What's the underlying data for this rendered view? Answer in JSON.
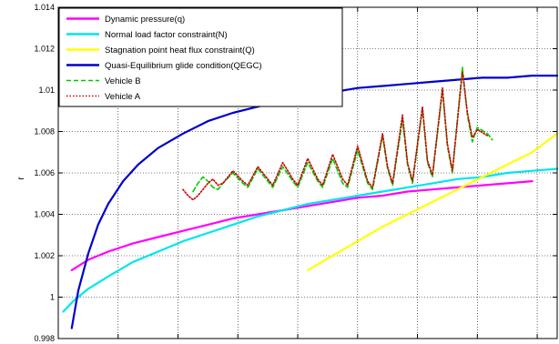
{
  "chart_data": {
    "type": "line",
    "title": "",
    "xlabel": "",
    "ylabel": "r",
    "ylim": [
      0.998,
      1.014
    ],
    "y_ticks": [
      0.998,
      1,
      1.002,
      1.004,
      1.006,
      1.008,
      1.01,
      1.012,
      1.014
    ],
    "y_tick_labels": [
      "0.998",
      "1",
      "1.002",
      "1.004",
      "1.006",
      "1.008",
      "1.01",
      "1.012",
      "1.014"
    ],
    "xlim": [
      0,
      1
    ],
    "x_gridlines": [
      0.12,
      0.24,
      0.36,
      0.48,
      0.6,
      0.72,
      0.84,
      0.96
    ],
    "grid": true,
    "legend_position": "top-left",
    "series": [
      {
        "name": "Dynamic pressure(q)",
        "color": "#ff00ff",
        "style": "solid",
        "x": [
          0.027,
          0.06,
          0.1,
          0.15,
          0.2,
          0.25,
          0.3,
          0.35,
          0.4,
          0.45,
          0.5,
          0.55,
          0.6,
          0.65,
          0.7,
          0.75,
          0.8,
          0.85,
          0.9,
          0.95
        ],
        "values": [
          1.0013,
          1.0018,
          1.0022,
          1.0026,
          1.0029,
          1.0032,
          1.0035,
          1.0038,
          1.004,
          1.0042,
          1.0044,
          1.0046,
          1.0048,
          1.0049,
          1.0051,
          1.0052,
          1.0053,
          1.0054,
          1.0055,
          1.0056
        ]
      },
      {
        "name": "Normal load factor constraint(N)",
        "color": "#00e5ee",
        "style": "solid",
        "x": [
          0.01,
          0.03,
          0.06,
          0.1,
          0.15,
          0.2,
          0.25,
          0.3,
          0.35,
          0.4,
          0.45,
          0.5,
          0.55,
          0.6,
          0.65,
          0.7,
          0.75,
          0.8,
          0.85,
          0.9,
          0.95,
          1.0
        ],
        "values": [
          0.9993,
          0.9998,
          1.0004,
          1.001,
          1.0017,
          1.0022,
          1.0027,
          1.0031,
          1.0035,
          1.0039,
          1.0042,
          1.0045,
          1.0047,
          1.0049,
          1.0051,
          1.0053,
          1.0055,
          1.0057,
          1.0058,
          1.006,
          1.0061,
          1.0062
        ]
      },
      {
        "name": "Stagnation point heat flux constraint(Q)",
        "color": "#ffff00",
        "style": "solid",
        "x": [
          0.5,
          0.55,
          0.6,
          0.65,
          0.7,
          0.75,
          0.8,
          0.85,
          0.9,
          0.95,
          1.0
        ],
        "values": [
          1.0013,
          1.002,
          1.0027,
          1.0034,
          1.004,
          1.0046,
          1.0052,
          1.0058,
          1.0064,
          1.007,
          1.0079
        ]
      },
      {
        "name": "Quasi-Equilibrium glide condition(QEGC)",
        "color": "#0000cc",
        "style": "solid",
        "x": [
          0.027,
          0.04,
          0.06,
          0.08,
          0.1,
          0.13,
          0.16,
          0.2,
          0.25,
          0.3,
          0.35,
          0.4,
          0.45,
          0.5,
          0.55,
          0.6,
          0.65,
          0.7,
          0.75,
          0.8,
          0.85,
          0.9,
          0.95,
          1.0
        ],
        "values": [
          0.9985,
          1.0003,
          1.0021,
          1.0035,
          1.0045,
          1.0056,
          1.0064,
          1.0072,
          1.0079,
          1.0085,
          1.0089,
          1.0092,
          1.0095,
          1.0097,
          1.0099,
          1.0101,
          1.0102,
          1.0103,
          1.0104,
          1.0105,
          1.0106,
          1.0106,
          1.0107,
          1.0107
        ]
      },
      {
        "name": "Vehicle B",
        "color": "#00cc00",
        "style": "dashed",
        "x": [
          0.27,
          0.28,
          0.29,
          0.3,
          0.31,
          0.32,
          0.33,
          0.35,
          0.37,
          0.38,
          0.4,
          0.42,
          0.43,
          0.45,
          0.47,
          0.48,
          0.5,
          0.52,
          0.53,
          0.55,
          0.57,
          0.58,
          0.6,
          0.62,
          0.63,
          0.65,
          0.66,
          0.67,
          0.69,
          0.7,
          0.71,
          0.73,
          0.74,
          0.75,
          0.77,
          0.78,
          0.79,
          0.81,
          0.82,
          0.83,
          0.84,
          0.86,
          0.87
        ],
        "values": [
          1.0051,
          1.0055,
          1.0058,
          1.0056,
          1.0053,
          1.0052,
          1.0055,
          1.006,
          1.0055,
          1.0053,
          1.0062,
          1.0056,
          1.0053,
          1.0063,
          1.0056,
          1.0053,
          1.0065,
          1.0056,
          1.0053,
          1.0067,
          1.0055,
          1.0053,
          1.0071,
          1.0055,
          1.0052,
          1.0078,
          1.0062,
          1.0054,
          1.0086,
          1.0064,
          1.0055,
          1.0091,
          1.0065,
          1.0058,
          1.01,
          1.0073,
          1.006,
          1.0111,
          1.0088,
          1.0075,
          1.0082,
          1.0079,
          1.0076
        ]
      },
      {
        "name": "Vehicle A",
        "color": "#cc0000",
        "style": "dotted",
        "x": [
          0.25,
          0.26,
          0.27,
          0.28,
          0.29,
          0.3,
          0.31,
          0.32,
          0.33,
          0.35,
          0.37,
          0.38,
          0.4,
          0.42,
          0.43,
          0.45,
          0.47,
          0.48,
          0.5,
          0.52,
          0.53,
          0.55,
          0.57,
          0.58,
          0.6,
          0.62,
          0.63,
          0.65,
          0.66,
          0.67,
          0.69,
          0.7,
          0.71,
          0.73,
          0.74,
          0.75,
          0.77,
          0.78,
          0.79,
          0.81,
          0.82,
          0.83,
          0.84,
          0.86
        ],
        "values": [
          1.0052,
          1.0049,
          1.0047,
          1.0049,
          1.0052,
          1.0055,
          1.0057,
          1.0054,
          1.0055,
          1.0061,
          1.0056,
          1.0054,
          1.0063,
          1.0057,
          1.0054,
          1.0065,
          1.0057,
          1.0054,
          1.0067,
          1.0057,
          1.0054,
          1.0069,
          1.0057,
          1.0054,
          1.0073,
          1.0056,
          1.0053,
          1.0079,
          1.0063,
          1.0055,
          1.0088,
          1.0065,
          1.0056,
          1.0092,
          1.0066,
          1.0059,
          1.0101,
          1.0074,
          1.0061,
          1.0109,
          1.0089,
          1.0077,
          1.0081,
          1.0078
        ]
      }
    ]
  }
}
